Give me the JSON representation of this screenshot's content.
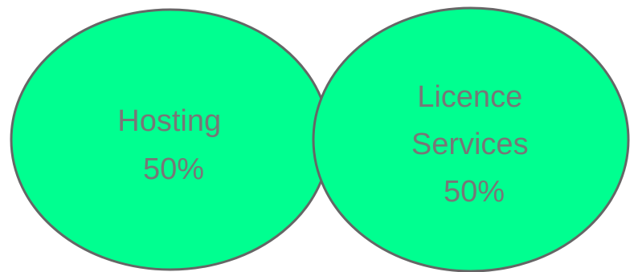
{
  "colors": {
    "fill": "#00FF90",
    "stroke": "#666666",
    "text": "#777777"
  },
  "circles": [
    {
      "lines": [
        "Hosting",
        "50%"
      ]
    },
    {
      "lines": [
        "Licence",
        "Services",
        "50%"
      ]
    }
  ]
}
